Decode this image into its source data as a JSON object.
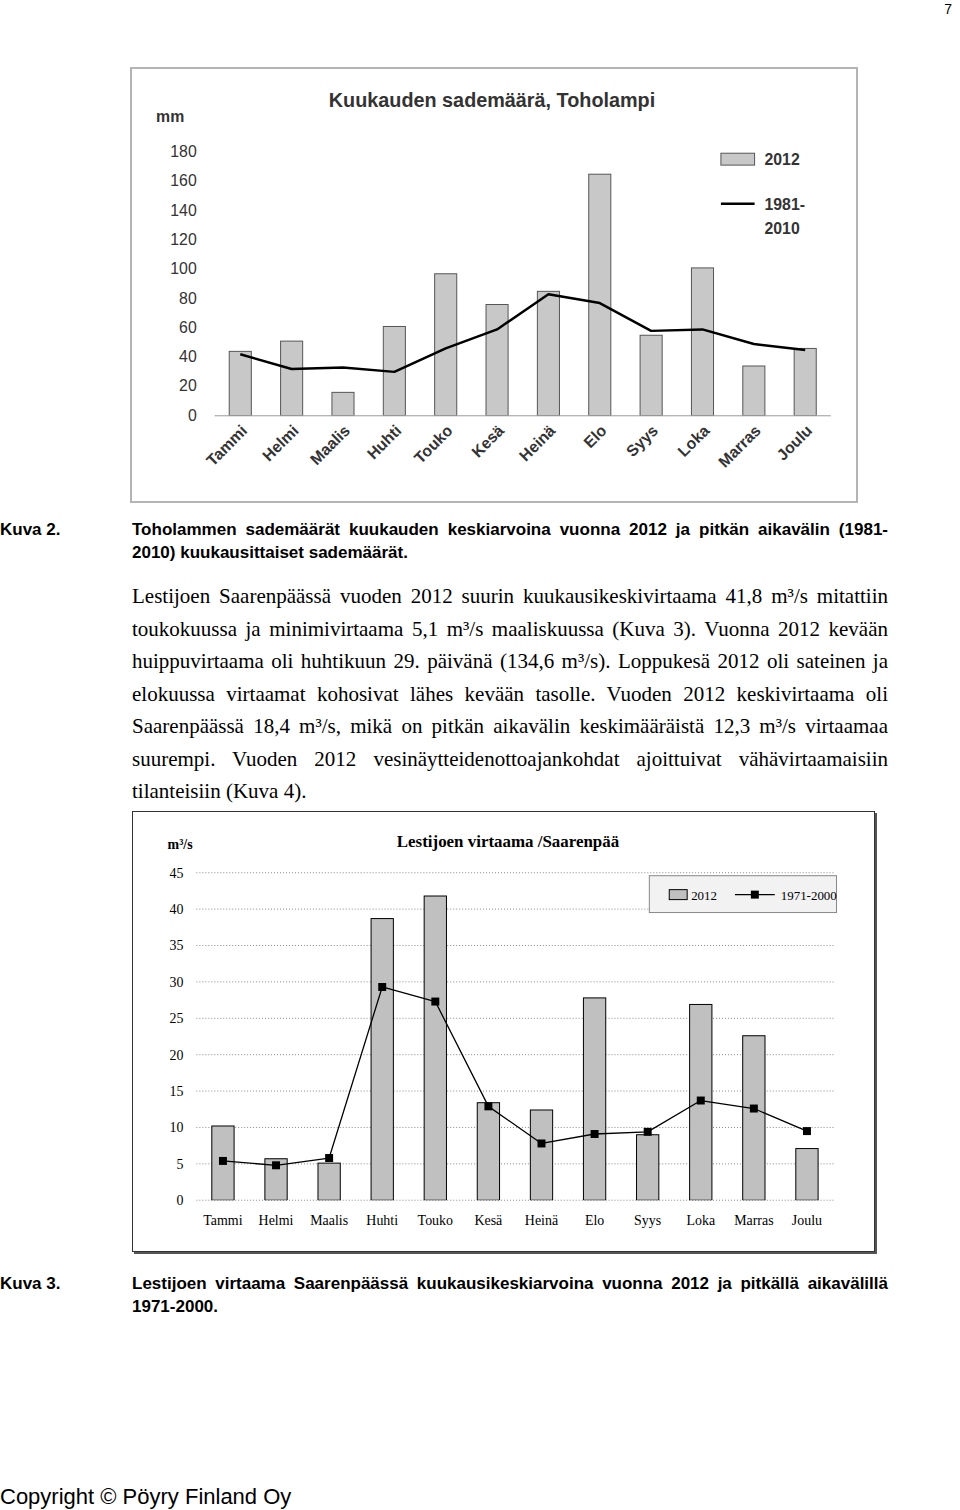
{
  "document": {
    "page_number": "7",
    "captions": [
      {
        "label": "Kuva 2.",
        "text": "Toholammen sademäärät kuukauden keskiarvoina vuonna 2012 ja pitkän aikavälin (1981-2010) kuukausittaiset sademäärät."
      },
      {
        "label": "Kuva 3.",
        "text": "Lestijoen virtaama Saarenpäässä kuukausikeskiarvoina vuonna 2012 ja pitkällä aikavälillä 1971-2000."
      }
    ],
    "paragraph": "Lestijoen Saarenpäässä vuoden 2012 suurin kuukausikeskivirtaama 41,8 m³/s mitattiin toukokuussa ja minimivirtaama 5,1 m³/s maaliskuussa (Kuva 3). Vuonna 2012 kevään huippuvirtaama oli huhtikuun 29. päivänä (134,6 m³/s). Loppukesä 2012 oli sateinen ja elokuussa virtaamat kohosivat lähes kevään tasolle. Vuoden 2012 keskivirtaama oli Saarenpäässä 18,4 m³/s, mikä on pitkän aikavälin keskimääräistä 12,3 m³/s virtaamaa suurempi. Vuoden 2012 vesinäytteidenottoajankohdat ajoittuivat vähävirtaamaisiin tilanteisiin (Kuva 4).",
    "footer": "Copyright © Pöyry Finland Oy"
  },
  "chart_data": [
    {
      "type": "bar",
      "title": "Kuukauden sademäärä, Toholampi",
      "y_label": "mm",
      "categories": [
        "Tammi",
        "Helmi",
        "Maalis",
        "Huhti",
        "Touko",
        "Kesä",
        "Heinä",
        "Elo",
        "Syys",
        "Loka",
        "Marras",
        "Joulu"
      ],
      "series": [
        {
          "name": "2012",
          "type": "bar",
          "color": "#c8c8c8",
          "values": [
            44,
            51,
            16,
            61,
            97,
            76,
            85,
            165,
            55,
            101,
            34,
            46
          ]
        },
        {
          "name": "1981-2010",
          "type": "line",
          "color": "#000000",
          "marker": "none",
          "values": [
            42,
            32,
            33,
            30,
            46,
            59,
            83,
            77,
            58,
            59,
            49,
            45
          ]
        }
      ],
      "ylim": [
        0,
        180
      ],
      "yticks": [
        0,
        20,
        40,
        60,
        80,
        100,
        120,
        140,
        160,
        180
      ],
      "grid": false,
      "legend": "right"
    },
    {
      "type": "bar",
      "title": "Lestijoen virtaama /Saarenpää",
      "y_label": "m³/s",
      "categories": [
        "Tammi",
        "Helmi",
        "Maalis",
        "Huhti",
        "Touko",
        "Kesä",
        "Heinä",
        "Elo",
        "Syys",
        "Loka",
        "Marras",
        "Joulu"
      ],
      "series": [
        {
          "name": "2012",
          "type": "bar",
          "color": "#c0c0c0",
          "values": [
            10.2,
            5.7,
            5.1,
            38.7,
            41.8,
            13.4,
            12.4,
            27.8,
            9.0,
            26.9,
            22.6,
            7.1
          ]
        },
        {
          "name": "1971-2000",
          "type": "line",
          "color": "#000000",
          "marker": "square",
          "values": [
            5.4,
            4.8,
            5.8,
            29.3,
            27.3,
            12.9,
            7.8,
            9.1,
            9.4,
            13.7,
            12.6,
            9.5
          ]
        }
      ],
      "ylim": [
        0,
        45
      ],
      "yticks": [
        0,
        5,
        10,
        15,
        20,
        25,
        30,
        35,
        40,
        45
      ],
      "grid": true,
      "legend": "top-right"
    }
  ]
}
